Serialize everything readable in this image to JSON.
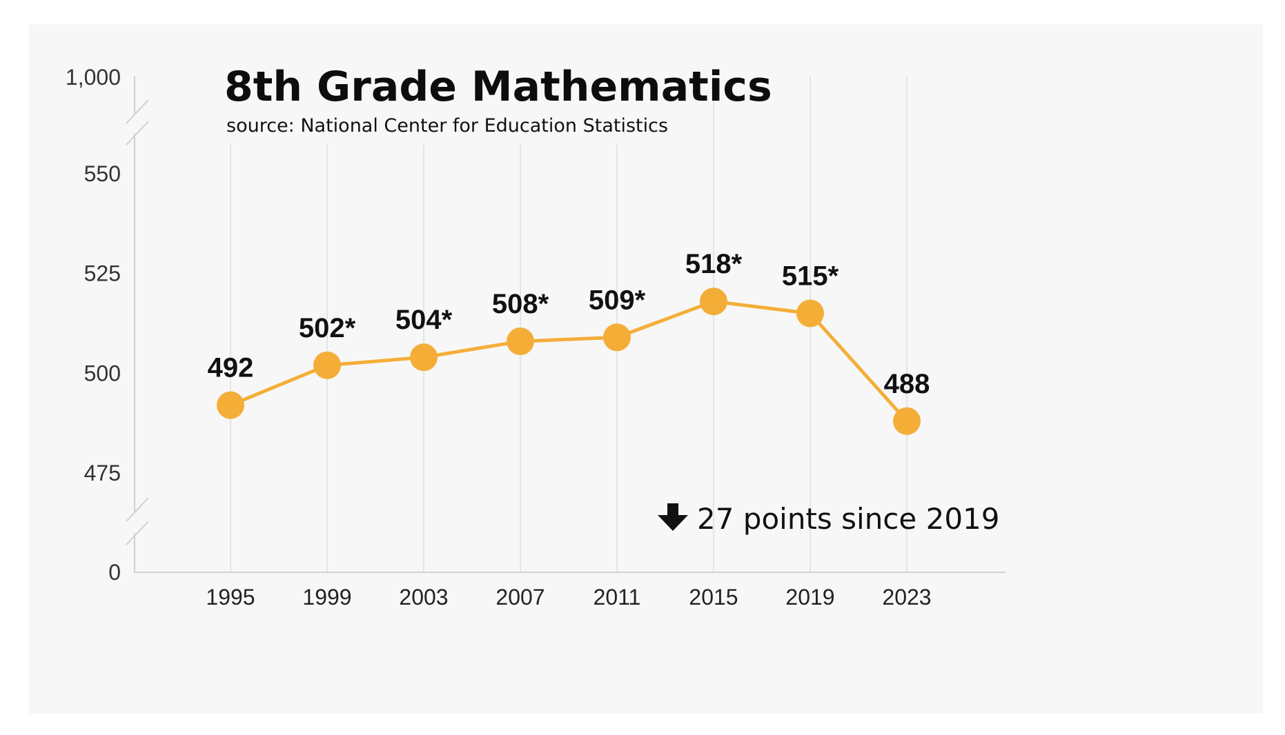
{
  "chart_data": {
    "type": "line",
    "title": "8th Grade Mathematics",
    "subtitle": "source: National Center for Education Statistics",
    "categories": [
      "1995",
      "1999",
      "2003",
      "2007",
      "2011",
      "2015",
      "2019",
      "2023"
    ],
    "values": [
      492,
      502,
      504,
      508,
      509,
      518,
      515,
      488
    ],
    "data_labels": [
      "492",
      "502*",
      "504*",
      "508*",
      "509*",
      "518*",
      "515*",
      "488"
    ],
    "y_ticks": [
      "1,000",
      "550",
      "525",
      "500",
      "475",
      "0"
    ],
    "ylim": [
      475,
      550
    ],
    "axis_breaks": true,
    "grid": "vertical",
    "annotation": {
      "arrow": "down-arrow-icon",
      "text": "27 points since 2019"
    },
    "colors": {
      "line": "#f4ae38",
      "marker": "#f4ae38",
      "background": "#f7f7f7",
      "grid": "#dedede"
    }
  }
}
